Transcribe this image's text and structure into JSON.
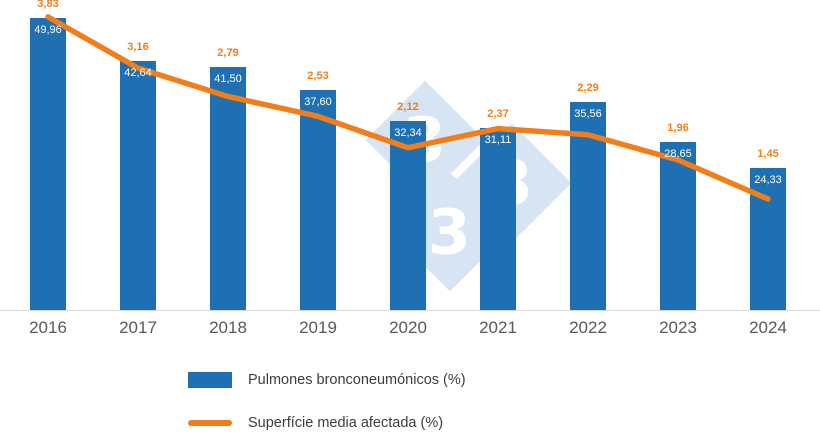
{
  "watermark": {
    "glyph": "3"
  },
  "legend": [
    {
      "label": "Pulmones bronconeumónicos (%)",
      "type": "bar",
      "color": "#1f70b2"
    },
    {
      "label": "Superfície media afectada (%)",
      "type": "line",
      "color": "#f07e1b"
    }
  ],
  "chart_data": {
    "type": "bar",
    "subtype": "combo-bar-line",
    "categories": [
      "2016",
      "2017",
      "2018",
      "2019",
      "2020",
      "2021",
      "2022",
      "2023",
      "2024"
    ],
    "series": [
      {
        "name": "Pulmones bronconeumónicos (%)",
        "type": "bar",
        "color": "#1f70b2",
        "values": [
          49.96,
          42.64,
          41.5,
          37.6,
          32.34,
          31.11,
          35.56,
          28.65,
          24.33
        ],
        "labels": [
          "49,96",
          "42,64",
          "41,50",
          "37,60",
          "32,34",
          "31,11",
          "35,56",
          "28,65",
          "24,33"
        ]
      },
      {
        "name": "Superfície media afectada (%)",
        "type": "line",
        "color": "#f07e1b",
        "values": [
          3.83,
          3.16,
          2.79,
          2.53,
          2.12,
          2.37,
          2.29,
          1.96,
          1.45
        ],
        "labels": [
          "3,83",
          "3,16",
          "2,79",
          "2,53",
          "2,12",
          "2,37",
          "2,29",
          "1,96",
          "1,45"
        ]
      }
    ],
    "title": "",
    "xlabel": "",
    "ylabel": "",
    "bar_axis_range": [
      0,
      53
    ],
    "line_axis_range": [
      0,
      4.05
    ],
    "grid": false,
    "legend_position": "bottom-left"
  }
}
